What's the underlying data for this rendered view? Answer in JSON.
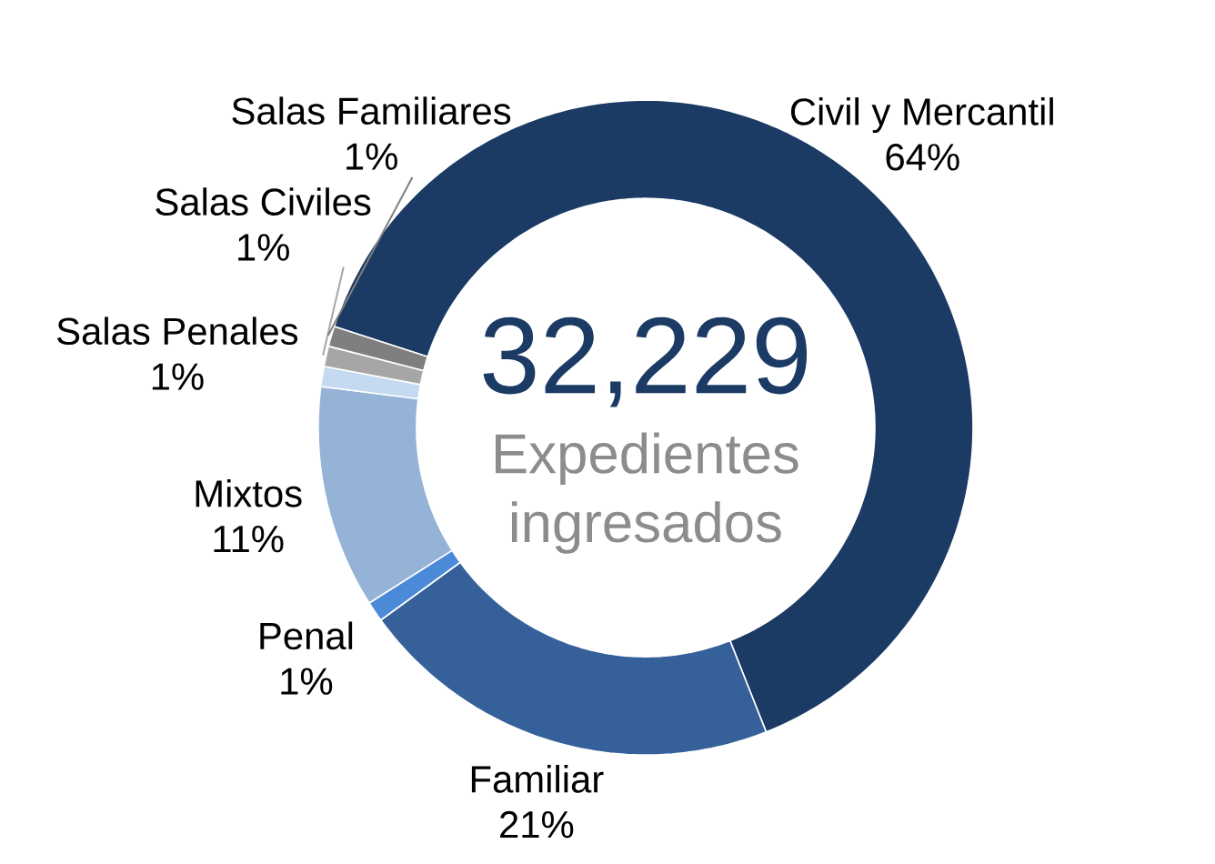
{
  "chart_data": {
    "type": "donut",
    "categories": [
      "Civil y Mercantil",
      "Familiar",
      "Penal",
      "Mixtos",
      "Salas Penales",
      "Salas Civiles",
      "Salas Familiares"
    ],
    "values": [
      64,
      21,
      1,
      11,
      1,
      1,
      1
    ],
    "value_labels": [
      "64%",
      "21%",
      "1%",
      "11%",
      "1%",
      "1%",
      "1%"
    ],
    "colors": [
      "#1b3a64",
      "#35609a",
      "#4a8ad8",
      "#95b3d7",
      "#c5d9f1",
      "#a6a6a6",
      "#7f7f7f"
    ],
    "annotations": [
      "32,229",
      "Expedientes ingresados"
    ]
  }
}
